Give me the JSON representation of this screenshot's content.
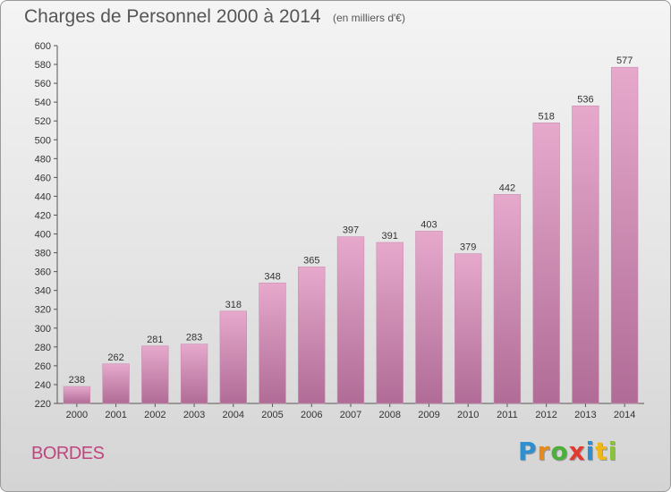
{
  "header": {
    "title": "Charges de Personnel 2000 à 2014",
    "subtitle": "(en milliers d'€)"
  },
  "footer": {
    "commune": "BORDES",
    "logo_text": "Proxiti",
    "logo_colors": [
      "#2d8fcf",
      "#e8891b",
      "#4daf3b",
      "#e23a2e",
      "#2d8fcf",
      "#f0b816",
      "#8ac13d"
    ]
  },
  "chart_data": {
    "type": "bar",
    "title": "Charges de Personnel 2000 à 2014",
    "subtitle": "(en milliers d'€)",
    "xlabel": "",
    "ylabel": "",
    "categories": [
      "2000",
      "2001",
      "2002",
      "2003",
      "2004",
      "2005",
      "2006",
      "2007",
      "2008",
      "2009",
      "2010",
      "2011",
      "2012",
      "2013",
      "2014"
    ],
    "values": [
      238,
      262,
      281,
      283,
      318,
      348,
      365,
      397,
      391,
      403,
      379,
      442,
      518,
      536,
      577
    ],
    "ylim": [
      220,
      600
    ],
    "ytick_step": 20,
    "grid": false,
    "bar_color_top": "#e6a9cc",
    "bar_color_bottom": "#b06c96",
    "data_labels": true
  }
}
